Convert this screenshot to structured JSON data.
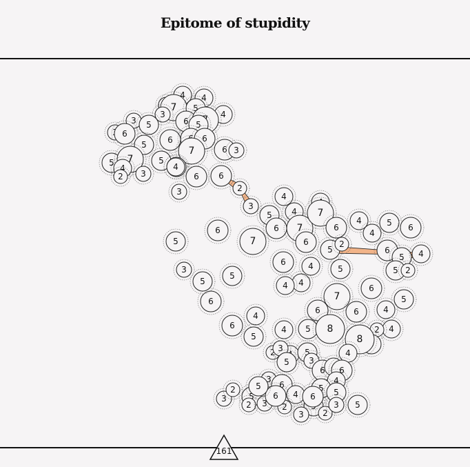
{
  "title": "Epitome of stupidity",
  "page_number": "161",
  "colors": {
    "background": "#f6f4f5",
    "stroke": "#222222",
    "highlight": "#f2b489"
  },
  "nodes": [
    {
      "label": "4"
    },
    {
      "label": "4"
    },
    {
      "label": "3"
    },
    {
      "label": "7"
    },
    {
      "label": "5"
    },
    {
      "label": "4"
    },
    {
      "label": "3"
    },
    {
      "label": "3"
    },
    {
      "label": "5"
    },
    {
      "label": "6"
    },
    {
      "label": "7"
    },
    {
      "label": "5"
    },
    {
      "label": "3"
    },
    {
      "label": "6"
    },
    {
      "label": "5"
    },
    {
      "label": "6"
    },
    {
      "label": "6"
    },
    {
      "label": "6"
    },
    {
      "label": "7"
    },
    {
      "label": "6"
    },
    {
      "label": "3"
    },
    {
      "label": "5"
    },
    {
      "label": "7"
    },
    {
      "label": "4"
    },
    {
      "label": "5"
    },
    {
      "label": "2"
    },
    {
      "label": "3"
    },
    {
      "label": "5"
    },
    {
      "label": "4"
    },
    {
      "label": "6"
    },
    {
      "label": "6"
    },
    {
      "label": "3"
    },
    {
      "label": "2"
    },
    {
      "label": "3"
    },
    {
      "label": "5"
    },
    {
      "label": "6"
    },
    {
      "label": "4"
    },
    {
      "label": "7"
    },
    {
      "label": "6"
    },
    {
      "label": "4"
    },
    {
      "label": "5"
    },
    {
      "label": "4"
    },
    {
      "label": "6"
    },
    {
      "label": "7"
    },
    {
      "label": "6"
    },
    {
      "label": "4"
    },
    {
      "label": "7"
    },
    {
      "label": "4"
    },
    {
      "label": "5"
    },
    {
      "label": "6"
    },
    {
      "label": "2"
    },
    {
      "label": "5"
    },
    {
      "label": "7"
    },
    {
      "label": "4"
    },
    {
      "label": "4"
    },
    {
      "label": "5"
    },
    {
      "label": "6"
    },
    {
      "label": "6"
    },
    {
      "label": "5"
    },
    {
      "label": "4"
    },
    {
      "label": "5"
    },
    {
      "label": "2"
    },
    {
      "label": "6"
    },
    {
      "label": "5"
    },
    {
      "label": "4"
    },
    {
      "label": "4"
    },
    {
      "label": "2"
    },
    {
      "label": "5"
    },
    {
      "label": "8"
    },
    {
      "label": "4"
    },
    {
      "label": "6"
    },
    {
      "label": "6"
    },
    {
      "label": "5"
    },
    {
      "label": "8"
    },
    {
      "label": "6"
    },
    {
      "label": "4"
    },
    {
      "label": "5"
    },
    {
      "label": "4"
    },
    {
      "label": "6"
    },
    {
      "label": "3"
    },
    {
      "label": "5"
    },
    {
      "label": "5"
    },
    {
      "label": "4"
    },
    {
      "label": "2"
    },
    {
      "label": "4"
    },
    {
      "label": "5"
    },
    {
      "label": "3"
    },
    {
      "label": "3"
    },
    {
      "label": "5"
    },
    {
      "label": "6"
    },
    {
      "label": "4"
    },
    {
      "label": "6"
    },
    {
      "label": "4"
    },
    {
      "label": "5"
    },
    {
      "label": "5"
    },
    {
      "label": "3"
    },
    {
      "label": "2"
    },
    {
      "label": "5"
    },
    {
      "label": "2"
    },
    {
      "label": "3"
    },
    {
      "label": "3"
    },
    {
      "label": "6"
    },
    {
      "label": "4"
    },
    {
      "label": "5"
    },
    {
      "label": "3"
    },
    {
      "label": "2"
    },
    {
      "label": "3"
    },
    {
      "label": "5"
    },
    {
      "label": "6"
    },
    {
      "label": "2"
    },
    {
      "label": "6"
    },
    {
      "label": "5"
    }
  ],
  "highlighted_links": [
    [
      30,
      32
    ],
    [
      32,
      33
    ],
    [
      58,
      59
    ],
    [
      59,
      48
    ]
  ]
}
